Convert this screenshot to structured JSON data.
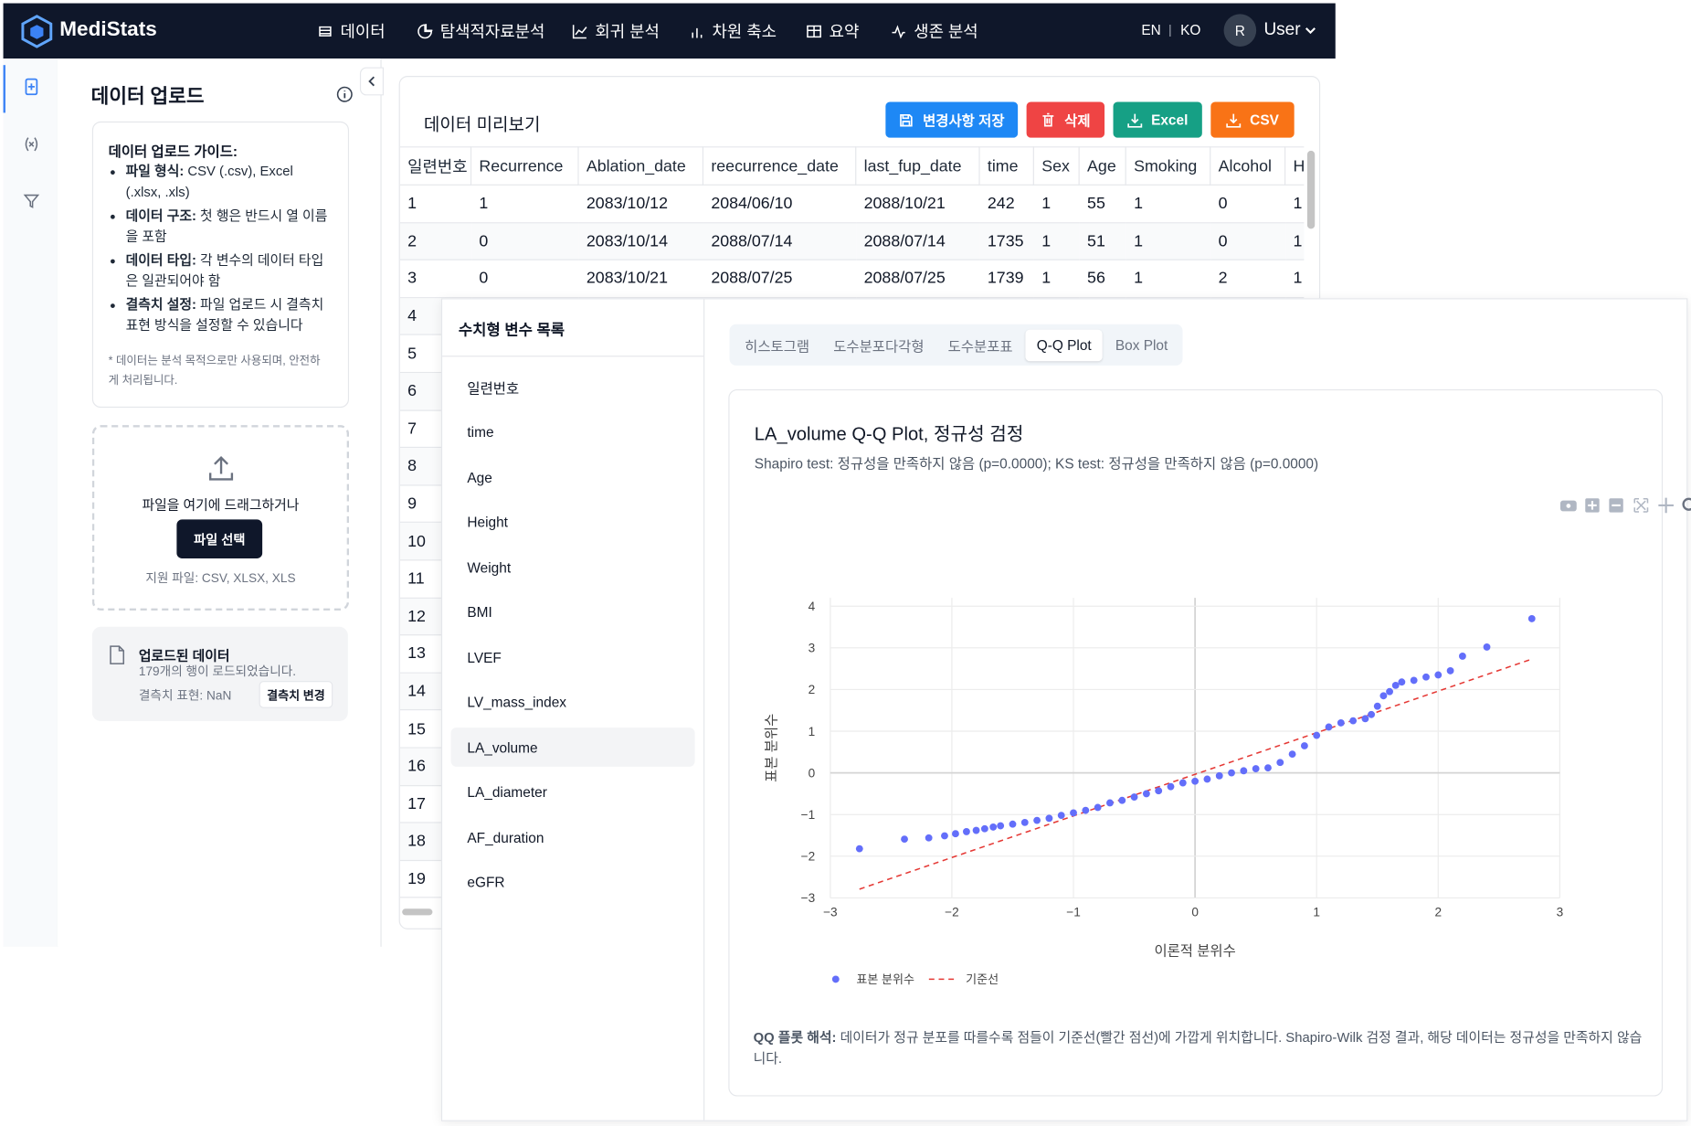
{
  "nav": {
    "brand": "MediStats",
    "items": [
      "데이터",
      "탐색적자료분석",
      "회귀 분석",
      "차원 축소",
      "요약",
      "생존 분석"
    ],
    "lang_en": "EN",
    "lang_sep": "|",
    "lang_ko": "KO",
    "avatar": "R",
    "user": "User"
  },
  "upload": {
    "title": "데이터 업로드",
    "guide_title": "데이터 업로드 가이드:",
    "guide": [
      {
        "label": "파일 형식:",
        "text": "CSV (.csv), Excel (.xlsx, .xls)"
      },
      {
        "label": "데이터 구조:",
        "text": "첫 행은 반드시 열 이름을 포함"
      },
      {
        "label": "데이터 타입:",
        "text": "각 변수의 데이터 타입은 일관되어야 함"
      },
      {
        "label": "결측치 설정:",
        "text": "파일 업로드 시 결측치 표현 방식을 설정할 수 있습니다"
      }
    ],
    "note": "* 데이터는 분석 목적으로만 사용되며, 안전하게 처리됩니다.",
    "drop_text": "파일을 여기에 드래그하거나",
    "select_button": "파일 선택",
    "supported": "지원 파일: CSV, XLSX, XLS",
    "uploaded_title": "업로드된 데이터",
    "uploaded_rows": "179개의 행이 로드되었습니다.",
    "missing_label": "결측치 표현: NaN",
    "missing_button": "결측치 변경"
  },
  "preview": {
    "title": "데이터 미리보기",
    "buttons": [
      "변경사항 저장",
      "삭제",
      "Excel",
      "CSV"
    ],
    "columns": [
      "일련번호",
      "Recurrence",
      "Ablation_date",
      "reecurrence_date",
      "last_fup_date",
      "time",
      "Sex",
      "Age",
      "Smoking",
      "Alcohol",
      "H"
    ],
    "rows": [
      [
        "1",
        "1",
        "2083/10/12",
        "2084/06/10",
        "2088/10/21",
        "242",
        "1",
        "55",
        "1",
        "0",
        "1"
      ],
      [
        "2",
        "0",
        "2083/10/14",
        "2088/07/14",
        "2088/07/14",
        "1735",
        "1",
        "51",
        "1",
        "0",
        "1"
      ],
      [
        "3",
        "0",
        "2083/10/21",
        "2088/07/25",
        "2088/07/25",
        "1739",
        "1",
        "56",
        "1",
        "2",
        "1"
      ],
      [
        "4"
      ],
      [
        "5"
      ],
      [
        "6"
      ],
      [
        "7"
      ],
      [
        "8"
      ],
      [
        "9"
      ],
      [
        "10"
      ],
      [
        "11"
      ],
      [
        "12"
      ],
      [
        "13"
      ],
      [
        "14"
      ],
      [
        "15"
      ],
      [
        "16"
      ],
      [
        "17"
      ],
      [
        "18"
      ],
      [
        "19"
      ]
    ]
  },
  "variables": {
    "title": "수치형 변수 목록",
    "items": [
      "일련번호",
      "time",
      "Age",
      "Height",
      "Weight",
      "BMI",
      "LVEF",
      "LV_mass_index",
      "LA_volume",
      "LA_diameter",
      "AF_duration",
      "eGFR"
    ],
    "selected": 8
  },
  "tabs": {
    "items": [
      "히스토그램",
      "도수분포다각형",
      "도수분포표",
      "Q-Q Plot",
      "Box Plot"
    ],
    "active": 3
  },
  "chart_data": {
    "type": "scatter",
    "title": "LA_volume Q-Q Plot, 정규성 검정",
    "subtitle": "Shapiro test: 정규성을 만족하지 않음 (p=0.0000); KS test: 정규성을 만족하지 않음 (p=0.0000)",
    "x_label": "이론적 분위수",
    "y_label": "표본 분위수",
    "xlim": [
      -3,
      3
    ],
    "ylim": [
      -3,
      4.2
    ],
    "xticks": [
      {
        "value": -3,
        "label": "−3"
      },
      {
        "value": -2,
        "label": "−2"
      },
      {
        "value": -1,
        "label": "−1"
      },
      0,
      1,
      2,
      3
    ],
    "yticks": [
      {
        "value": -3,
        "label": "−3"
      },
      {
        "value": -2,
        "label": "−2"
      },
      {
        "value": -1,
        "label": "−1"
      },
      0,
      1,
      2,
      3,
      4
    ],
    "grid": true,
    "series": [
      {
        "name": "표본 분위수",
        "type": "scatter",
        "color": "#636efa",
        "x": [
          -2.76,
          -2.39,
          -2.19,
          -2.06,
          -1.97,
          -1.88,
          -1.8,
          -1.73,
          -1.66,
          -1.6,
          -1.5,
          -1.4,
          -1.3,
          -1.2,
          -1.1,
          -1.0,
          -0.9,
          -0.8,
          -0.7,
          -0.6,
          -0.5,
          -0.4,
          -0.3,
          -0.2,
          -0.1,
          0,
          0.1,
          0.2,
          0.3,
          0.4,
          0.5,
          0.6,
          0.7,
          0.8,
          0.9,
          1.0,
          1.1,
          1.2,
          1.3,
          1.4,
          1.45,
          1.5,
          1.55,
          1.6,
          1.65,
          1.7,
          1.8,
          1.9,
          2.0,
          2.1,
          2.2,
          2.4,
          2.77
        ],
        "values": [
          -1.82,
          -1.59,
          -1.56,
          -1.51,
          -1.46,
          -1.41,
          -1.38,
          -1.34,
          -1.3,
          -1.27,
          -1.23,
          -1.19,
          -1.14,
          -1.09,
          -1.02,
          -0.96,
          -0.9,
          -0.83,
          -0.72,
          -0.66,
          -0.58,
          -0.5,
          -0.43,
          -0.33,
          -0.24,
          -0.2,
          -0.15,
          -0.07,
          0.0,
          0.05,
          0.1,
          0.12,
          0.25,
          0.45,
          0.65,
          0.9,
          1.1,
          1.2,
          1.25,
          1.3,
          1.4,
          1.6,
          1.85,
          1.95,
          2.1,
          2.18,
          2.22,
          2.3,
          2.35,
          2.45,
          2.8,
          3.02,
          3.7
        ]
      },
      {
        "name": "기준선",
        "type": "line",
        "color": "#e53935",
        "dash": true,
        "x": [
          -2.76,
          2.77
        ],
        "values": [
          -2.79,
          2.73
        ]
      }
    ]
  },
  "interpretation": {
    "label": "QQ 플롯 해석:",
    "text": "데이터가 정규 분포를 따를수록 점들이 기준선(빨간 점선)에 가깝게 위치합니다. Shapiro-Wilk 검정 결과, 해당 데이터는 정규성을 만족하지 않습니다."
  }
}
